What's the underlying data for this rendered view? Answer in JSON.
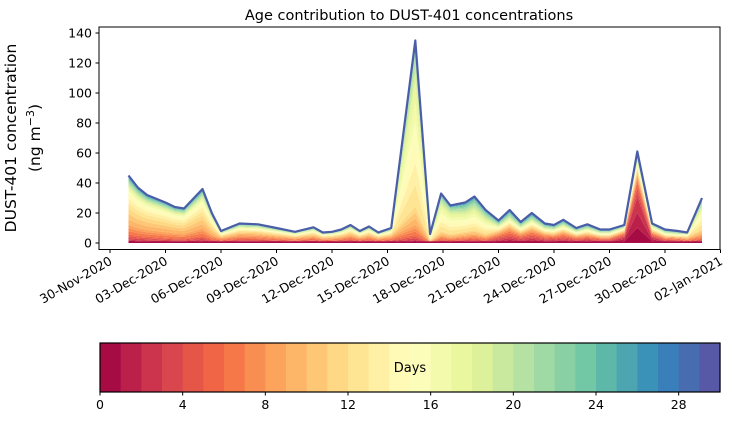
{
  "figure": {
    "title": "Age contribution to DUST-401 concentrations",
    "background": "#ffffff"
  },
  "axes": {
    "ylabel_line1": "DUST-401 concentration",
    "ylabel_line2_pre": "(ng m",
    "ylabel_line2_sup": "−3",
    "ylabel_line2_post": ")",
    "y_ticks": [
      0,
      20,
      40,
      60,
      80,
      100,
      120,
      140
    ],
    "ylim": [
      0,
      140
    ],
    "x_tick_labels": [
      "30-Nov-2020",
      "03-Dec-2020",
      "06-Dec-2020",
      "09-Dec-2020",
      "12-Dec-2020",
      "15-Dec-2020",
      "18-Dec-2020",
      "21-Dec-2020",
      "24-Dec-2020",
      "27-Dec-2020",
      "30-Dec-2020",
      "02-Jan-2021"
    ],
    "x_tick_days": [
      0,
      3,
      6,
      9,
      12,
      15,
      18,
      21,
      24,
      27,
      30,
      33
    ]
  },
  "colorbar": {
    "label": "Days",
    "ticks": [
      0,
      4,
      8,
      12,
      16,
      20,
      24,
      28
    ],
    "range": [
      0,
      30
    ],
    "segments": 30
  },
  "chart_data": {
    "type": "area",
    "stacked": true,
    "title": "Age contribution to DUST-401 concentrations",
    "ylabel": "DUST-401 concentration (ng m-3)",
    "x_base_date": "30-Nov-2020",
    "x_units": "days since 30-Nov-2020",
    "x_days": [
      1,
      1.5,
      2,
      3,
      3.5,
      4,
      5,
      5.5,
      6,
      7,
      8,
      9,
      10,
      11,
      11.5,
      12,
      12.5,
      13,
      13.5,
      14,
      14.5,
      15.2,
      16.5,
      17.3,
      17.9,
      18.4,
      19.2,
      19.7,
      20.3,
      21,
      21.6,
      22.2,
      22.8,
      23.5,
      24,
      24.5,
      25.2,
      25.8,
      26.5,
      27,
      27.8,
      28.5,
      29.3,
      30,
      30.7,
      31.2,
      32
    ],
    "totals": [
      45,
      37,
      32,
      27,
      24,
      23,
      36,
      20,
      8,
      13,
      12.5,
      10,
      7.5,
      10.5,
      7,
      7.5,
      9,
      12,
      8,
      11,
      7,
      10,
      135,
      6,
      33,
      25,
      27,
      31,
      22,
      15,
      22,
      14,
      20,
      13,
      12,
      15.5,
      10,
      12.5,
      9,
      9,
      12,
      61,
      13,
      9,
      8,
      7,
      30
    ],
    "bands": [
      "0-3 days",
      "3-6 days",
      "6-9 days",
      "9-12 days",
      "12-15 days",
      "15-18 days",
      "18-21 days",
      "21-24 days",
      "24-27 days",
      "27-30 days"
    ],
    "profiles": {
      "cream": [
        0.05,
        0.08,
        0.14,
        0.24,
        0.22,
        0.1,
        0.07,
        0.05,
        0.03,
        0.02
      ],
      "mixed": [
        0.09,
        0.14,
        0.18,
        0.18,
        0.13,
        0.09,
        0.08,
        0.06,
        0.03,
        0.02
      ],
      "spike": [
        0.015,
        0.025,
        0.05,
        0.09,
        0.32,
        0.3,
        0.12,
        0.045,
        0.02,
        0.015
      ],
      "green": [
        0.04,
        0.06,
        0.08,
        0.1,
        0.22,
        0.2,
        0.14,
        0.09,
        0.04,
        0.03
      ],
      "green2": [
        0.03,
        0.05,
        0.07,
        0.09,
        0.28,
        0.24,
        0.13,
        0.06,
        0.03,
        0.02
      ],
      "late": [
        0.14,
        0.16,
        0.14,
        0.11,
        0.1,
        0.09,
        0.09,
        0.08,
        0.05,
        0.04
      ],
      "red": [
        0.5,
        0.16,
        0.08,
        0.06,
        0.05,
        0.04,
        0.04,
        0.03,
        0.02,
        0.02
      ],
      "redt": [
        0.3,
        0.18,
        0.12,
        0.09,
        0.08,
        0.07,
        0.06,
        0.05,
        0.03,
        0.02
      ],
      "redt2": [
        0.28,
        0.16,
        0.12,
        0.1,
        0.1,
        0.08,
        0.07,
        0.05,
        0.02,
        0.02
      ],
      "end": [
        0.04,
        0.06,
        0.09,
        0.12,
        0.3,
        0.18,
        0.1,
        0.06,
        0.03,
        0.02
      ]
    },
    "profile_keys": [
      "cream",
      "cream",
      "cream",
      "cream",
      "cream",
      "cream",
      "cream",
      "cream",
      "mixed",
      "mixed",
      "mixed",
      "mixed",
      "mixed",
      "mixed",
      "mixed",
      "mixed",
      "mixed",
      "mixed",
      "mixed",
      "mixed",
      "mixed",
      "mixed",
      "spike",
      "green",
      "green2",
      "green2",
      "green",
      "green",
      "green",
      "late",
      "late",
      "late",
      "late",
      "late",
      "late",
      "late",
      "late",
      "late",
      "late",
      "late",
      "redt",
      "red",
      "redt2",
      "late",
      "late",
      "mixed",
      "end"
    ],
    "colormap_name": "Spectral",
    "colormap_stops": [
      "#9e0142",
      "#d53e4f",
      "#f46d43",
      "#fdae61",
      "#fee08b",
      "#ffffbf",
      "#e6f598",
      "#abdda4",
      "#66c2a5",
      "#3288bd",
      "#5e4fa2"
    ],
    "outline_color": "#4a5da8",
    "legend_position": "horizontal colorbar below plot"
  }
}
